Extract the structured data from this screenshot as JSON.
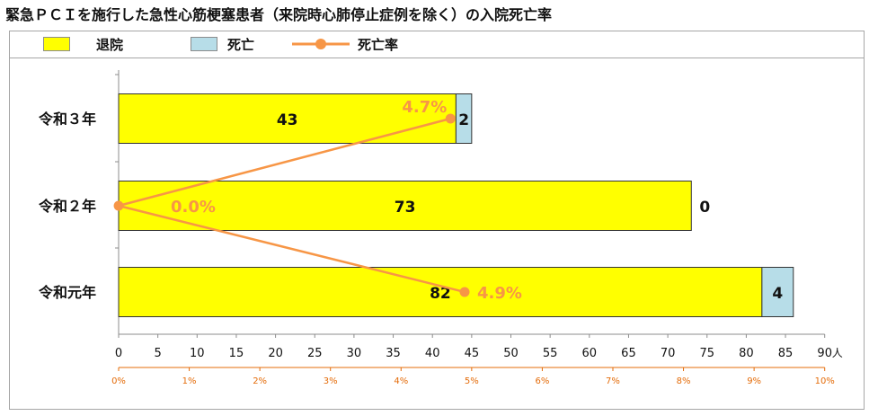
{
  "title": "緊急ＰＣＩを施行した急性心筋梗塞患者（来院時心肺停止症例を除く）の入院死亡率",
  "chart_data": {
    "type": "bar",
    "orientation": "horizontal",
    "stacked": true,
    "categories": [
      "令和３年",
      "令和２年",
      "令和元年"
    ],
    "series": [
      {
        "name": "退院",
        "values": [
          43,
          73,
          82
        ],
        "color": "#ffff00"
      },
      {
        "name": "死亡",
        "values": [
          2,
          0,
          4
        ],
        "color": "#b7dde8"
      }
    ],
    "line_series": {
      "name": "死亡率",
      "values": [
        4.7,
        0.0,
        4.9
      ],
      "labels": [
        "4.7%",
        "0.0%",
        "4.9%"
      ],
      "color": "#f79646"
    },
    "x_axis": {
      "min": 0,
      "max": 90,
      "step": 5,
      "unit": "人"
    },
    "x2_axis": {
      "min": 0,
      "max": 10,
      "step": 1,
      "suffix": "%",
      "color": "#e46c0a"
    },
    "legend_position": "top"
  }
}
